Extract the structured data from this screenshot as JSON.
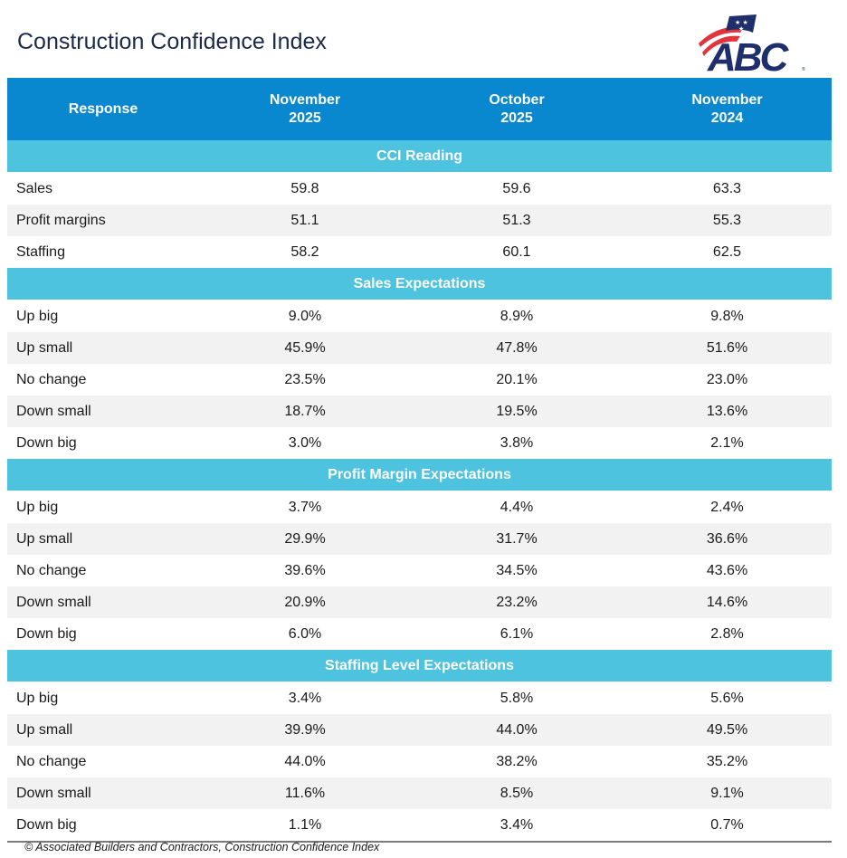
{
  "title": "Construction Confidence Index",
  "logo": {
    "text": "ABC",
    "icon": "abc-flag-logo",
    "colors": {
      "navy": "#1f2f6b",
      "red": "#e2343c"
    }
  },
  "colors": {
    "header_bg": "#0a88cf",
    "section_bg": "#4dc3e0",
    "alt_row": "#f2f2f2"
  },
  "columns": [
    {
      "line1": "Response",
      "line2": ""
    },
    {
      "line1": "November",
      "line2": "2025"
    },
    {
      "line1": "October",
      "line2": "2025"
    },
    {
      "line1": "November",
      "line2": "2024"
    }
  ],
  "sections": [
    {
      "title": "CCI Reading",
      "rows": [
        {
          "label": "Sales",
          "values": [
            "59.8",
            "59.6",
            "63.3"
          ]
        },
        {
          "label": "Profit margins",
          "values": [
            "51.1",
            "51.3",
            "55.3"
          ]
        },
        {
          "label": "Staffing",
          "values": [
            "58.2",
            "60.1",
            "62.5"
          ]
        }
      ]
    },
    {
      "title": "Sales Expectations",
      "rows": [
        {
          "label": "Up big",
          "values": [
            "9.0%",
            "8.9%",
            "9.8%"
          ]
        },
        {
          "label": "Up small",
          "values": [
            "45.9%",
            "47.8%",
            "51.6%"
          ]
        },
        {
          "label": "No change",
          "values": [
            "23.5%",
            "20.1%",
            "23.0%"
          ]
        },
        {
          "label": "Down small",
          "values": [
            "18.7%",
            "19.5%",
            "13.6%"
          ]
        },
        {
          "label": "Down big",
          "values": [
            "3.0%",
            "3.8%",
            "2.1%"
          ]
        }
      ]
    },
    {
      "title": "Profit Margin Expectations",
      "rows": [
        {
          "label": "Up big",
          "values": [
            "3.7%",
            "4.4%",
            "2.4%"
          ]
        },
        {
          "label": "Up small",
          "values": [
            "29.9%",
            "31.7%",
            "36.6%"
          ]
        },
        {
          "label": "No change",
          "values": [
            "39.6%",
            "34.5%",
            "43.6%"
          ]
        },
        {
          "label": "Down small",
          "values": [
            "20.9%",
            "23.2%",
            "14.6%"
          ]
        },
        {
          "label": "Down big",
          "values": [
            "6.0%",
            "6.1%",
            "2.8%"
          ]
        }
      ]
    },
    {
      "title": "Staffing Level Expectations",
      "rows": [
        {
          "label": "Up big",
          "values": [
            "3.4%",
            "5.8%",
            "5.6%"
          ]
        },
        {
          "label": "Up small",
          "values": [
            "39.9%",
            "44.0%",
            "49.5%"
          ]
        },
        {
          "label": "No change",
          "values": [
            "44.0%",
            "38.2%",
            "35.2%"
          ]
        },
        {
          "label": "Down small",
          "values": [
            "11.6%",
            "8.5%",
            "9.1%"
          ]
        },
        {
          "label": "Down big",
          "values": [
            "1.1%",
            "3.4%",
            "0.7%"
          ]
        }
      ]
    }
  ],
  "footer": "© Associated Builders and Contractors, Construction Confidence Index"
}
